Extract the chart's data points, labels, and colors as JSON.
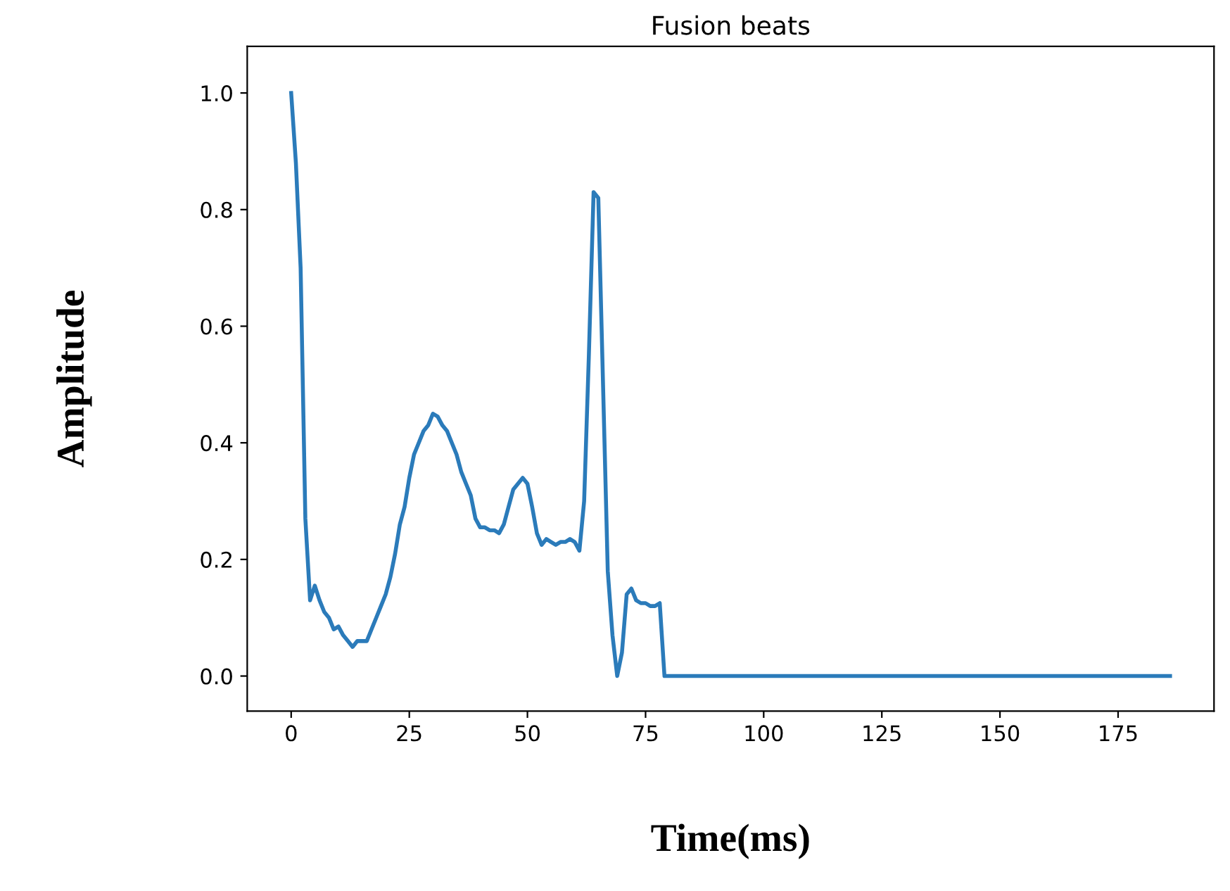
{
  "chart_data": {
    "type": "line",
    "title": "Fusion beats",
    "xlabel": "Time(ms)",
    "ylabel": "Amplitude",
    "x": [
      0,
      1,
      2,
      3,
      4,
      5,
      6,
      7,
      8,
      9,
      10,
      11,
      12,
      13,
      14,
      15,
      16,
      17,
      18,
      19,
      20,
      21,
      22,
      23,
      24,
      25,
      26,
      27,
      28,
      29,
      30,
      31,
      32,
      33,
      34,
      35,
      36,
      37,
      38,
      39,
      40,
      41,
      42,
      43,
      44,
      45,
      46,
      47,
      48,
      49,
      50,
      51,
      52,
      53,
      54,
      55,
      56,
      57,
      58,
      59,
      60,
      61,
      62,
      63,
      64,
      65,
      66,
      67,
      68,
      69,
      70,
      71,
      72,
      73,
      74,
      75,
      76,
      77,
      78,
      79,
      186
    ],
    "series": [
      {
        "color": "#2b7bba",
        "values": [
          1.0,
          0.88,
          0.7,
          0.27,
          0.13,
          0.155,
          0.13,
          0.11,
          0.1,
          0.08,
          0.085,
          0.07,
          0.06,
          0.05,
          0.06,
          0.06,
          0.06,
          0.08,
          0.1,
          0.12,
          0.14,
          0.17,
          0.21,
          0.26,
          0.29,
          0.34,
          0.38,
          0.4,
          0.42,
          0.43,
          0.45,
          0.445,
          0.43,
          0.42,
          0.4,
          0.38,
          0.35,
          0.33,
          0.31,
          0.27,
          0.255,
          0.255,
          0.25,
          0.25,
          0.245,
          0.26,
          0.29,
          0.32,
          0.33,
          0.34,
          0.33,
          0.29,
          0.245,
          0.225,
          0.235,
          0.23,
          0.225,
          0.23,
          0.23,
          0.235,
          0.23,
          0.215,
          0.3,
          0.55,
          0.83,
          0.82,
          0.5,
          0.18,
          0.07,
          0.0,
          0.04,
          0.14,
          0.15,
          0.13,
          0.125,
          0.125,
          0.12,
          0.12,
          0.125,
          0.0,
          0.0
        ]
      }
    ],
    "xlim": [
      -9.3,
      195.3
    ],
    "ylim": [
      -0.06,
      1.08
    ],
    "xticks": [
      0,
      25,
      50,
      75,
      100,
      125,
      150,
      175
    ],
    "yticks": [
      {
        "value": 0,
        "label": "0.0"
      },
      {
        "value": 0.2,
        "label": "0.2"
      },
      {
        "value": 0.4,
        "label": "0.4"
      },
      {
        "value": 0.6,
        "label": "0.6"
      },
      {
        "value": 0.8,
        "label": "0.8"
      },
      {
        "value": 1.0,
        "label": "1.0"
      }
    ],
    "grid": false,
    "legend": false
  }
}
